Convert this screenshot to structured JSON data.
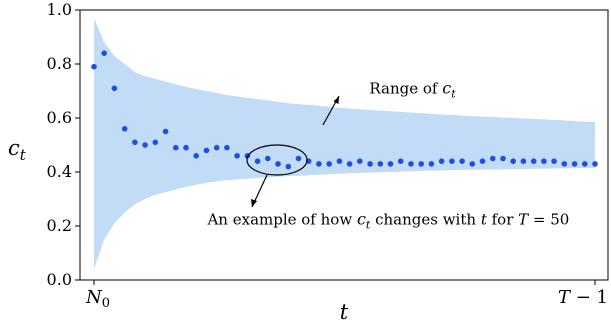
{
  "chart_data": {
    "type": "scatter",
    "title": "",
    "xlabel": "t",
    "ylabel": "c",
    "ylabel_sub": "t",
    "ylim": [
      0.0,
      1.0
    ],
    "yticks": [
      0.0,
      0.2,
      0.4,
      0.6,
      0.8,
      1.0
    ],
    "ytick_labels": [
      "0.0",
      "0.2",
      "0.4",
      "0.6",
      "0.8",
      "1.0"
    ],
    "xlim": [
      1,
      50
    ],
    "x_tick_left": {
      "main": "N",
      "sub": "0"
    },
    "x_tick_right": {
      "main": "T",
      "rest": " − 1"
    },
    "band_color": "#c2dcf7",
    "point_color": "#1f4fe0",
    "range_band": {
      "x": [
        1,
        2,
        3,
        4,
        5,
        6,
        7,
        8,
        10,
        12,
        14,
        16,
        18,
        20,
        23,
        26,
        30,
        34,
        38,
        42,
        46,
        50
      ],
      "upper": [
        0.97,
        0.88,
        0.83,
        0.8,
        0.77,
        0.755,
        0.745,
        0.735,
        0.715,
        0.7,
        0.685,
        0.675,
        0.665,
        0.655,
        0.645,
        0.635,
        0.625,
        0.615,
        0.607,
        0.6,
        0.593,
        0.585
      ],
      "lower": [
        0.04,
        0.15,
        0.21,
        0.25,
        0.28,
        0.3,
        0.315,
        0.325,
        0.345,
        0.36,
        0.37,
        0.375,
        0.38,
        0.385,
        0.39,
        0.395,
        0.4,
        0.405,
        0.408,
        0.41,
        0.413,
        0.415
      ]
    },
    "series": [
      {
        "x": [
          1,
          2,
          3,
          4,
          5,
          6,
          7,
          8,
          9,
          10,
          11,
          12,
          13,
          14,
          15,
          16,
          17,
          18,
          19,
          20,
          21,
          22,
          23,
          24,
          25,
          26,
          27,
          28,
          29,
          30,
          31,
          32,
          33,
          34,
          35,
          36,
          37,
          38,
          39,
          40,
          41,
          42,
          43,
          44,
          45,
          46,
          47,
          48,
          49,
          50
        ],
        "values": [
          0.79,
          0.84,
          0.71,
          0.56,
          0.51,
          0.5,
          0.51,
          0.55,
          0.49,
          0.49,
          0.46,
          0.48,
          0.49,
          0.49,
          0.46,
          0.46,
          0.44,
          0.45,
          0.43,
          0.42,
          0.45,
          0.44,
          0.43,
          0.43,
          0.44,
          0.43,
          0.44,
          0.43,
          0.43,
          0.43,
          0.44,
          0.43,
          0.43,
          0.43,
          0.44,
          0.44,
          0.44,
          0.43,
          0.44,
          0.45,
          0.45,
          0.44,
          0.44,
          0.44,
          0.44,
          0.44,
          0.43,
          0.43,
          0.43,
          0.43
        ]
      }
    ],
    "annotations": [
      {
        "text": "Range of ",
        "var": "c",
        "sub": "t",
        "x": 25,
        "y": 0.69
      },
      {
        "text": "An example of  how ",
        "var": "c",
        "sub": "t",
        "rest": " changes with ",
        "var2": "t",
        "rest2": " for ",
        "var3": "T",
        "rest3": " = 50",
        "x": 12,
        "y": 0.205
      }
    ]
  }
}
